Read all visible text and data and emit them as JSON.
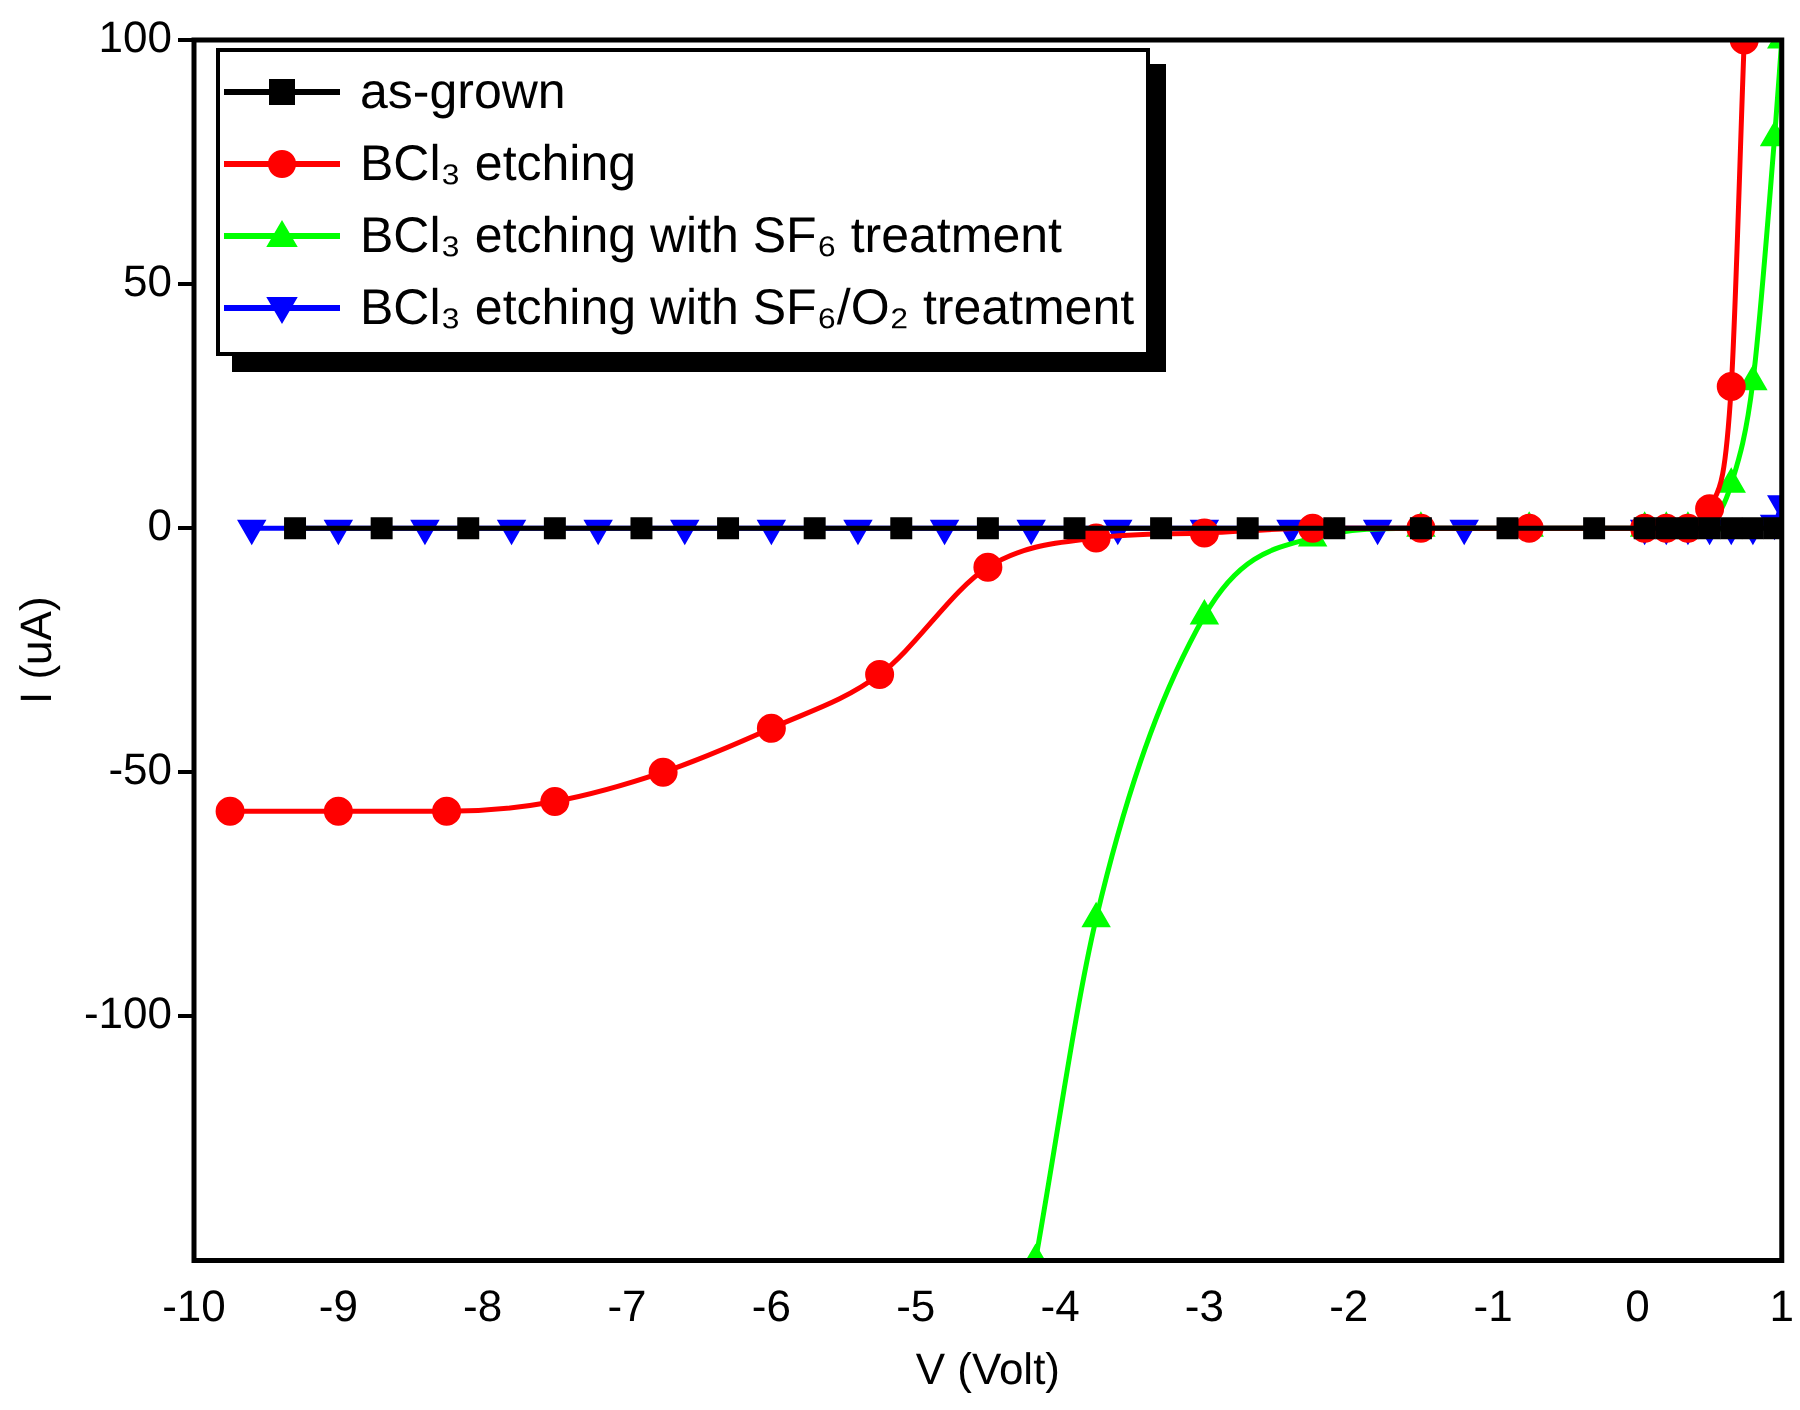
{
  "chart_data": {
    "type": "line",
    "xlabel": "V (Volt)",
    "ylabel": "I (uA)",
    "xlim": [
      -10,
      1
    ],
    "xticks": [
      -10,
      -9,
      -8,
      -7,
      -6,
      -5,
      -4,
      -3,
      -2,
      -1,
      0,
      1
    ],
    "ylim": [
      -150,
      100
    ],
    "yticks": [
      -100,
      -50,
      0,
      50,
      100
    ],
    "grid": false,
    "legend": "top left",
    "series": [
      {
        "name": "as-grown",
        "color": "#000000",
        "marker": "square",
        "x": [
          -9.3,
          -8.7,
          -8.1,
          -7.5,
          -6.9,
          -6.3,
          -5.7,
          -5.1,
          -4.5,
          -3.9,
          -3.3,
          -2.7,
          -2.1,
          -1.5,
          -0.9,
          -0.3,
          0.05,
          0.2,
          0.35,
          0.5,
          0.65,
          0.8,
          0.95
        ],
        "values": [
          0,
          0,
          0,
          0,
          0,
          0,
          0,
          0,
          0,
          0,
          0,
          0,
          0,
          0,
          0,
          0,
          0,
          0,
          0,
          0,
          0,
          0,
          0
        ]
      },
      {
        "name": "BCl₃ etching",
        "color": "#ff0000",
        "marker": "circle",
        "x": [
          -9.75,
          -9,
          -8.25,
          -7.5,
          -6.75,
          -6,
          -5.25,
          -4.5,
          -3.75,
          -3,
          -2.25,
          -1.5,
          -0.75,
          0.05,
          0.2,
          0.35,
          0.5,
          0.65,
          0.74
        ],
        "values": [
          -58,
          -58,
          -58,
          -56,
          -50,
          -41,
          -30,
          -8,
          -2,
          -1,
          0,
          0,
          0,
          0,
          0,
          0,
          4,
          29,
          100
        ]
      },
      {
        "name": "BCl₃ etching with SF₆ treatment",
        "color": "#00ff00",
        "marker": "triangle",
        "x": [
          -4.17,
          -3.75,
          -3,
          -2.25,
          -1.5,
          -0.75,
          0.05,
          0.2,
          0.35,
          0.5,
          0.65,
          0.8,
          0.95,
          1
        ],
        "values": [
          -150,
          -80,
          -18,
          -2,
          0,
          0,
          0,
          0,
          0,
          1,
          9,
          30,
          80,
          100
        ]
      },
      {
        "name": "BCl₃ etching with SF₆/O₂ treatment",
        "color": "#0000ff",
        "marker": "triangle-down",
        "x": [
          -9.6,
          -9,
          -8.4,
          -7.8,
          -7.2,
          -6.6,
          -6,
          -5.4,
          -4.8,
          -4.2,
          -3.6,
          -3,
          -2.4,
          -1.8,
          -1.2,
          0.05,
          0.2,
          0.35,
          0.5,
          0.65,
          0.8,
          0.95,
          1
        ],
        "values": [
          0,
          0,
          0,
          0,
          0,
          0,
          0,
          0,
          0,
          0,
          0,
          0,
          0,
          0,
          0,
          0,
          0,
          0,
          0,
          0,
          0,
          1,
          5
        ]
      }
    ]
  }
}
